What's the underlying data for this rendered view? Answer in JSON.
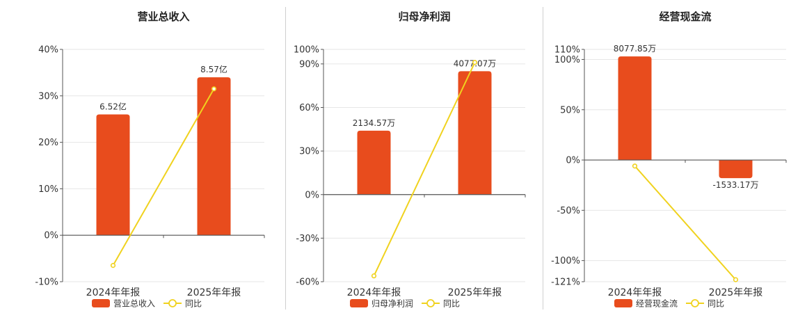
{
  "colors": {
    "bar": "#e84c1d",
    "line": "#f0d21e",
    "grid": "#e6e6e6",
    "axis": "#555555"
  },
  "chart_data": [
    {
      "type": "bar",
      "title": "营业总收入",
      "categories": [
        "2024年年报",
        "2025年年报"
      ],
      "ylim": [
        -10,
        40
      ],
      "yticks": [
        -10,
        0,
        10,
        20,
        30,
        40
      ],
      "ytick_labels": [
        "-10%",
        "0%",
        "10%",
        "20%",
        "30%",
        "40%"
      ],
      "series": [
        {
          "name": "营业总收入",
          "kind": "bar",
          "values": [
            26.0,
            34.0
          ],
          "labels": [
            "6.52亿",
            "8.57亿"
          ]
        },
        {
          "name": "同比",
          "kind": "line",
          "values": [
            -6.5,
            31.5
          ]
        }
      ],
      "grid": true,
      "legend": "bottom"
    },
    {
      "type": "bar",
      "title": "归母净利润",
      "categories": [
        "2024年年报",
        "2025年年报"
      ],
      "ylim": [
        -60,
        100
      ],
      "yticks": [
        -60,
        -30,
        0,
        30,
        60,
        90,
        100
      ],
      "ytick_labels": [
        "-60%",
        "-30%",
        "0%",
        "30%",
        "60%",
        "90%",
        "100%"
      ],
      "series": [
        {
          "name": "归母净利润",
          "kind": "bar",
          "values": [
            44,
            85
          ],
          "labels": [
            "2134.57万",
            "4077.07万"
          ]
        },
        {
          "name": "同比",
          "kind": "line",
          "values": [
            -56,
            91
          ]
        }
      ],
      "grid": true,
      "legend": "bottom"
    },
    {
      "type": "bar",
      "title": "经营现金流",
      "categories": [
        "2024年年报",
        "2025年年报"
      ],
      "ylim": [
        -121,
        110
      ],
      "yticks": [
        -121,
        -100,
        -50,
        0,
        50,
        100,
        110
      ],
      "ytick_labels": [
        "-121%",
        "-100%",
        "-50%",
        "0%",
        "50%",
        "100%",
        "110%"
      ],
      "series": [
        {
          "name": "经营现金流",
          "kind": "bar",
          "values": [
            103,
            -18
          ],
          "labels": [
            "8077.85万",
            "-1533.17万"
          ]
        },
        {
          "name": "同比",
          "kind": "line",
          "values": [
            -6,
            -119
          ]
        }
      ],
      "grid": true,
      "legend": "bottom"
    }
  ]
}
